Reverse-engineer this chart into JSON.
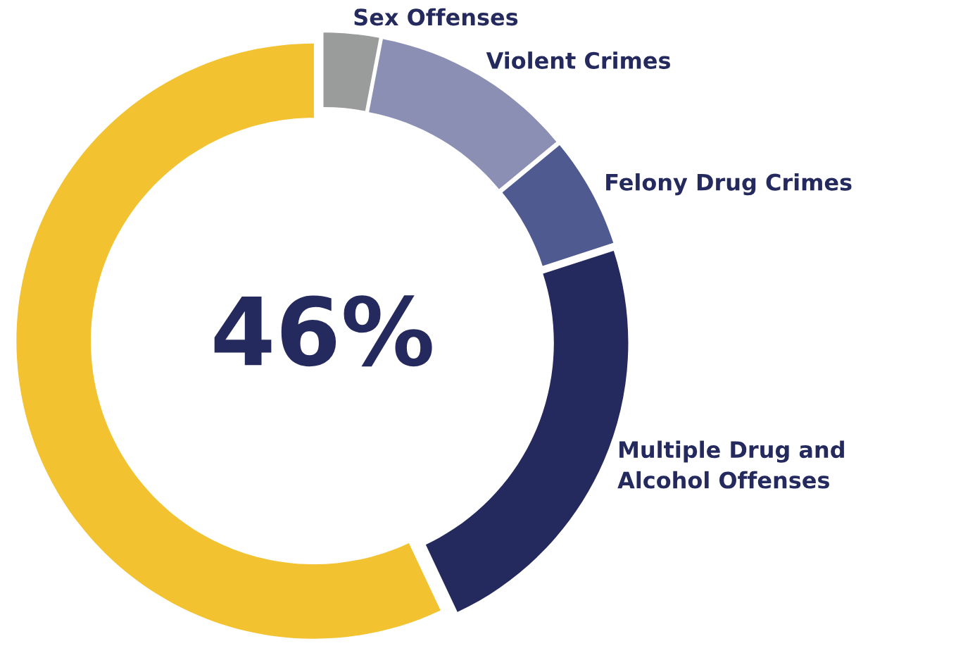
{
  "chart_data": {
    "type": "donut",
    "categories": [
      "Sex Offenses",
      "Violent Crimes",
      "Felony Drug Crimes",
      "Multiple Drug and\nAlcohol Offenses",
      null
    ],
    "values": [
      3,
      11,
      6,
      23,
      57
    ],
    "colors": [
      "#9a9c9b",
      "#8b8fb3",
      "#4e5a90",
      "#252a5e",
      "#f2c230"
    ],
    "annotations": [
      "46%"
    ],
    "legend": false
  }
}
